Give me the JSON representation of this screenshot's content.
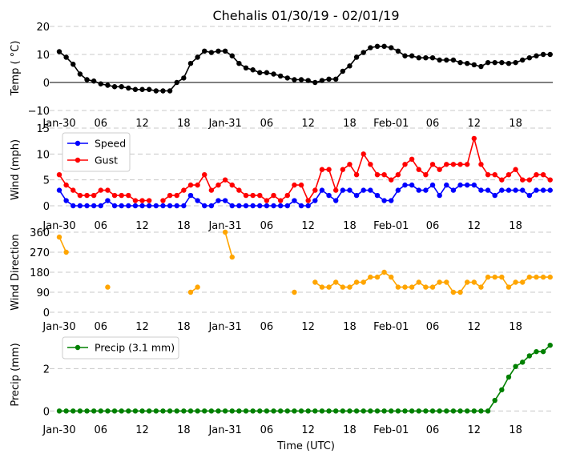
{
  "chart_data": [
    {
      "type": "line",
      "title": "Chehalis 01/30/19 - 02/01/19",
      "ylabel": "Temp ( °C)",
      "ylim": [
        -10,
        20
      ],
      "yticks": [
        "20",
        "10",
        "0",
        "−10"
      ],
      "ytick_values": [
        20,
        10,
        0,
        -10
      ],
      "grid": true,
      "zero_line": true,
      "series": [
        {
          "name": "Temp",
          "color": "#000000",
          "values": [
            11,
            9,
            6.5,
            3,
            1,
            0.5,
            -0.5,
            -1,
            -1.5,
            -1.5,
            -2,
            -2.5,
            -2.5,
            -2.5,
            -3,
            -3,
            -3,
            0,
            1.6,
            6.8,
            9,
            11.2,
            10.7,
            11.2,
            11.2,
            9.5,
            6.8,
            5.2,
            4.5,
            3.5,
            3.5,
            3,
            2.3,
            1.6,
            1,
            1,
            0.7,
            0,
            0.7,
            1.2,
            1.2,
            4,
            5.9,
            9,
            10.7,
            12.4,
            12.9,
            12.9,
            12.4,
            11.2,
            9.5,
            9.5,
            8.8,
            8.8,
            8.8,
            8,
            8,
            8,
            7.1,
            6.8,
            6.3,
            5.7,
            7.1,
            7.1,
            7.1,
            6.8,
            7.1,
            8,
            8.8,
            9.5,
            10,
            10
          ]
        }
      ]
    },
    {
      "type": "line",
      "ylabel": "Wind (mph)",
      "ylim": [
        0,
        15
      ],
      "yticks": [
        "15",
        "10",
        "5",
        "0"
      ],
      "ytick_values": [
        15,
        10,
        5,
        0
      ],
      "grid": true,
      "legend": "top-left",
      "series": [
        {
          "name": "Speed",
          "color": "#0000ff",
          "values": [
            3,
            1,
            0,
            0,
            0,
            0,
            0,
            1,
            0,
            0,
            0,
            0,
            0,
            0,
            0,
            0,
            0,
            0,
            0,
            2,
            1,
            0,
            0,
            1,
            1,
            0,
            0,
            0,
            0,
            0,
            0,
            0,
            0,
            0,
            1,
            0,
            0,
            1,
            3,
            2,
            1,
            3,
            3,
            2,
            3,
            3,
            2,
            1,
            1,
            3,
            4,
            4,
            3,
            3,
            4,
            2,
            4,
            3,
            4,
            4,
            4,
            3,
            3,
            2,
            3,
            3,
            3,
            3,
            2,
            3,
            3,
            3
          ]
        },
        {
          "name": "Gust",
          "color": "#ff0000",
          "values": [
            6,
            4,
            3,
            2,
            2,
            2,
            3,
            3,
            2,
            2,
            2,
            1,
            1,
            1,
            null,
            1,
            2,
            2,
            3,
            4,
            4,
            6,
            3,
            4,
            5,
            4,
            3,
            2,
            2,
            2,
            1,
            2,
            1,
            2,
            4,
            4,
            1,
            3,
            7,
            7,
            3,
            7,
            8,
            6,
            10,
            8,
            6,
            6,
            5,
            6,
            8,
            9,
            7,
            6,
            8,
            7,
            8,
            8,
            8,
            8,
            13,
            8,
            6,
            6,
            5,
            6,
            7,
            5,
            5,
            6,
            6,
            5
          ]
        }
      ]
    },
    {
      "type": "line",
      "ylabel": "Wind Direction",
      "ylim": [
        0,
        360
      ],
      "yticks": [
        "360",
        "270",
        "180",
        "90",
        "0"
      ],
      "ytick_values": [
        360,
        270,
        180,
        90,
        0
      ],
      "grid": true,
      "series": [
        {
          "name": "Direction",
          "color": "#ffa500",
          "values": [
            338,
            270,
            null,
            null,
            null,
            null,
            null,
            113,
            null,
            null,
            null,
            null,
            null,
            null,
            null,
            null,
            null,
            null,
            null,
            90,
            113,
            null,
            null,
            null,
            360,
            248,
            null,
            null,
            null,
            null,
            null,
            null,
            null,
            null,
            90,
            null,
            null,
            135,
            113,
            113,
            135,
            113,
            113,
            135,
            135,
            158,
            158,
            180,
            158,
            113,
            113,
            113,
            135,
            113,
            113,
            135,
            135,
            90,
            90,
            135,
            135,
            113,
            158,
            158,
            158,
            113,
            135,
            135,
            158,
            158,
            158,
            158
          ]
        }
      ]
    },
    {
      "type": "line",
      "ylabel": "Precip (mm)",
      "xlabel": "Time (UTC)",
      "ylim": [
        -0.2,
        3.3
      ],
      "yticks": [
        "2",
        "0"
      ],
      "ytick_values": [
        2,
        0
      ],
      "grid": true,
      "legend": "top-left",
      "series": [
        {
          "name": "Precip (3.1 mm)",
          "color": "#008000",
          "values": [
            0,
            0,
            0,
            0,
            0,
            0,
            0,
            0,
            0,
            0,
            0,
            0,
            0,
            0,
            0,
            0,
            0,
            0,
            0,
            0,
            0,
            0,
            0,
            0,
            0,
            0,
            0,
            0,
            0,
            0,
            0,
            0,
            0,
            0,
            0,
            0,
            0,
            0,
            0,
            0,
            0,
            0,
            0,
            0,
            0,
            0,
            0,
            0,
            0,
            0,
            0,
            0,
            0,
            0,
            0,
            0,
            0,
            0,
            0,
            0,
            0,
            0,
            0,
            0.5,
            1.0,
            1.6,
            2.1,
            2.3,
            2.6,
            2.8,
            2.8,
            3.1
          ]
        }
      ]
    }
  ],
  "x_axis": {
    "unit": "hours from Jan-30 00:00 UTC",
    "tick_hours": [
      0,
      6,
      12,
      18,
      24,
      30,
      36,
      42,
      48,
      54,
      60,
      66
    ],
    "tick_labels": [
      "Jan-30",
      "06",
      "12",
      "18",
      "Jan-31",
      "06",
      "12",
      "18",
      "Feb-01",
      "06",
      "12",
      "18"
    ]
  }
}
